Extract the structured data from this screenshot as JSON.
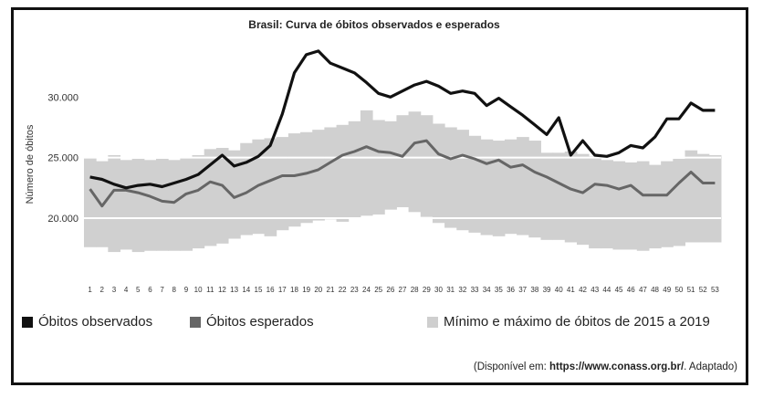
{
  "chart_data": {
    "type": "line",
    "title": "Brasil: Curva de óbitos observados e esperados",
    "ylabel": "Número de óbitos",
    "xlabel": "",
    "ylim": [
      16000,
      35000
    ],
    "yticks": [
      20000,
      25000,
      30000
    ],
    "ytick_labels": [
      "20.000",
      "25.000",
      "30.000"
    ],
    "grid": "horizontal lines at y ticks",
    "legend_position": "bottom",
    "x": [
      1,
      2,
      3,
      4,
      5,
      6,
      7,
      8,
      9,
      10,
      11,
      12,
      13,
      14,
      15,
      16,
      17,
      18,
      19,
      20,
      21,
      22,
      23,
      24,
      25,
      26,
      27,
      28,
      29,
      30,
      31,
      32,
      33,
      34,
      35,
      36,
      37,
      38,
      39,
      40,
      41,
      42,
      43,
      44,
      45,
      46,
      47,
      48,
      49,
      50,
      51,
      52,
      53
    ],
    "series": [
      {
        "name": "Óbitos observados",
        "color": "#111111",
        "kind": "line",
        "values": [
          23400,
          23200,
          22800,
          22500,
          22700,
          22800,
          22600,
          22900,
          23200,
          23600,
          24400,
          25200,
          24300,
          24600,
          25100,
          26000,
          28600,
          32000,
          33500,
          33800,
          32800,
          32400,
          32000,
          31200,
          30300,
          30000,
          30500,
          31000,
          31300,
          30900,
          30300,
          30500,
          30300,
          29300,
          29900,
          29200,
          28500,
          27700,
          26900,
          28300,
          25200,
          26400,
          25200,
          25100,
          25400,
          26000,
          25800,
          26700,
          28200,
          28200,
          29500,
          28900,
          28900
        ]
      },
      {
        "name": "Óbitos esperados",
        "color": "#666666",
        "kind": "line",
        "values": [
          22400,
          21000,
          22300,
          22300,
          22100,
          21800,
          21400,
          21300,
          22000,
          22300,
          23000,
          22700,
          21700,
          22100,
          22700,
          23100,
          23500,
          23500,
          23700,
          24000,
          24600,
          25200,
          25500,
          25900,
          25500,
          25400,
          25100,
          26200,
          26400,
          25300,
          24900,
          25200,
          24900,
          24500,
          24800,
          24200,
          24400,
          23800,
          23400,
          22900,
          22400,
          22100,
          22800,
          22700,
          22400,
          22700,
          21900,
          21900,
          21900,
          22900,
          23800,
          22900,
          22900
        ]
      },
      {
        "name": "Mínimo e máximo de óbitos de 2015 a 2019",
        "color": "#d0d0d0",
        "kind": "band",
        "min": [
          17600,
          17600,
          17200,
          17400,
          17200,
          17300,
          17300,
          17300,
          17300,
          17500,
          17700,
          17900,
          18300,
          18600,
          18700,
          18500,
          19000,
          19300,
          19600,
          19800,
          19900,
          19700,
          20000,
          20200,
          20300,
          20700,
          20900,
          20500,
          20100,
          19600,
          19200,
          19000,
          18800,
          18600,
          18500,
          18700,
          18600,
          18400,
          18200,
          18200,
          18000,
          17800,
          17500,
          17500,
          17400,
          17400,
          17300,
          17500,
          17600,
          17700,
          18000,
          18000,
          18000
        ],
        "max": [
          25000,
          24700,
          25200,
          24800,
          24900,
          24800,
          24900,
          24800,
          25000,
          25200,
          25700,
          25800,
          25600,
          26200,
          26500,
          26600,
          26700,
          27000,
          27100,
          27300,
          27500,
          27700,
          28000,
          28900,
          28100,
          28000,
          28500,
          28800,
          28500,
          27800,
          27500,
          27300,
          26800,
          26500,
          26400,
          26500,
          26700,
          26400,
          25400,
          25400,
          25500,
          25300,
          25100,
          24800,
          24700,
          24600,
          24700,
          24400,
          24700,
          24900,
          25600,
          25300,
          25200
        ]
      }
    ],
    "source_prefix": "(Disponível em: ",
    "source_url": "https://www.conass.org.br/",
    "source_suffix": ". Adaptado)"
  }
}
